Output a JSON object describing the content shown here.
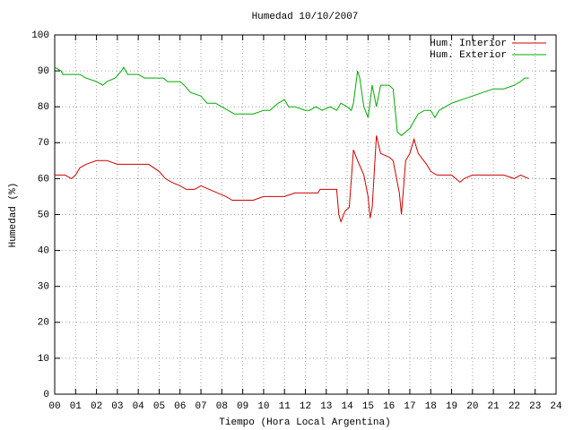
{
  "chart_data": {
    "type": "line",
    "title": "Humedad 10/10/2007",
    "xlabel": "Tiempo (Hora Local Argentina)",
    "ylabel": "Humedad (%)",
    "xlim": [
      0,
      24
    ],
    "ylim": [
      0,
      100
    ],
    "xticks": [
      {
        "value": 0,
        "label": "00"
      },
      {
        "value": 1,
        "label": "01"
      },
      {
        "value": 2,
        "label": "02"
      },
      {
        "value": 3,
        "label": "03"
      },
      {
        "value": 4,
        "label": "04"
      },
      {
        "value": 5,
        "label": "05"
      },
      {
        "value": 6,
        "label": "06"
      },
      {
        "value": 7,
        "label": "07"
      },
      {
        "value": 8,
        "label": "08"
      },
      {
        "value": 9,
        "label": "09"
      },
      10,
      11,
      12,
      13,
      14,
      15,
      16,
      17,
      18,
      19,
      20,
      21,
      22,
      23,
      24
    ],
    "yticks": [
      0,
      10,
      20,
      30,
      40,
      50,
      60,
      70,
      80,
      90,
      100
    ],
    "grid": true,
    "legend": "top-right",
    "series": [
      {
        "name": "Hum. Interior",
        "color": "#cc0000",
        "x": [
          0,
          0.5,
          0.8,
          1.0,
          1.2,
          1.5,
          2.0,
          2.5,
          3.0,
          4.0,
          4.5,
          5.0,
          5.3,
          5.6,
          6.0,
          6.3,
          6.7,
          7.0,
          7.4,
          7.8,
          8.2,
          8.5,
          9.0,
          9.5,
          10.0,
          11.0,
          11.5,
          12.0,
          12.6,
          12.7,
          13.5,
          13.6,
          13.7,
          13.9,
          14.1,
          14.3,
          14.5,
          14.8,
          15.0,
          15.1,
          15.2,
          15.4,
          15.6,
          16.0,
          16.2,
          16.5,
          16.6,
          16.8,
          17.0,
          17.2,
          17.4,
          17.8,
          18.0,
          18.3,
          19.0,
          19.4,
          19.6,
          20.0,
          21.0,
          21.5,
          22.0,
          22.3,
          22.7
        ],
        "values": [
          61,
          61,
          60,
          61,
          63,
          64,
          65,
          65,
          64,
          64,
          64,
          62,
          60,
          59,
          58,
          57,
          57,
          58,
          57,
          56,
          55,
          54,
          54,
          54,
          55,
          55,
          56,
          56,
          56,
          57,
          57,
          50,
          48,
          51,
          52,
          68,
          65,
          61,
          55,
          49,
          52,
          72,
          67,
          66,
          65,
          56,
          50,
          65,
          67,
          71,
          67,
          64,
          62,
          61,
          61,
          59,
          60,
          61,
          61,
          61,
          60,
          61,
          60
        ]
      },
      {
        "name": "Hum. Exterior",
        "color": "#00aa00",
        "x": [
          0,
          0.3,
          0.4,
          1.0,
          1.2,
          1.5,
          2.0,
          2.3,
          2.5,
          2.9,
          3.2,
          3.3,
          3.5,
          4.0,
          4.3,
          5.0,
          5.2,
          5.4,
          6.0,
          6.2,
          6.5,
          7.0,
          7.3,
          7.7,
          8.0,
          8.3,
          8.6,
          9.0,
          9.5,
          10.0,
          10.3,
          10.7,
          11.0,
          11.2,
          11.5,
          12.0,
          12.2,
          12.5,
          12.8,
          13.2,
          13.5,
          13.7,
          14.0,
          14.2,
          14.3,
          14.5,
          14.6,
          14.8,
          15.0,
          15.2,
          15.4,
          15.6,
          16.0,
          16.2,
          16.4,
          16.6,
          17.0,
          17.2,
          17.4,
          17.7,
          18.0,
          18.2,
          18.4,
          18.7,
          19.0,
          19.5,
          20.0,
          20.5,
          21.0,
          21.5,
          22.0,
          22.3,
          22.5,
          22.7
        ],
        "values": [
          91,
          90,
          89,
          89,
          89,
          88,
          87,
          86,
          87,
          88,
          90,
          91,
          89,
          89,
          88,
          88,
          88,
          87,
          87,
          86,
          84,
          83,
          81,
          81,
          80,
          79,
          78,
          78,
          78,
          79,
          79,
          81,
          82,
          80,
          80,
          79,
          79,
          80,
          79,
          80,
          79,
          81,
          80,
          79,
          81,
          90,
          88,
          80,
          77,
          86,
          80,
          86,
          86,
          85,
          73,
          72,
          74,
          76,
          78,
          79,
          79,
          77,
          79,
          80,
          81,
          82,
          83,
          84,
          85,
          85,
          86,
          87,
          88,
          88
        ]
      }
    ]
  }
}
